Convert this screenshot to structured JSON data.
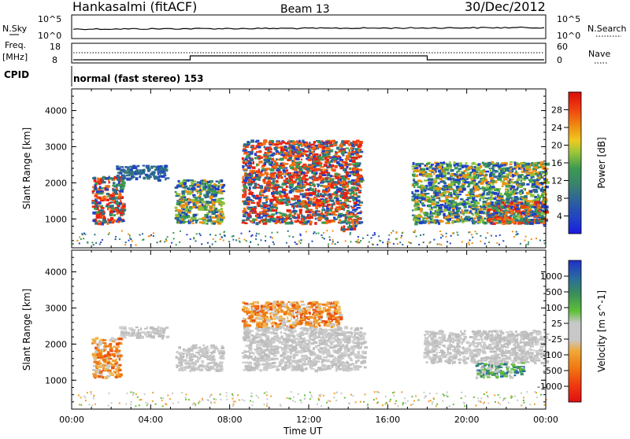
{
  "header": {
    "station": "Hankasalmi (fitACF)",
    "beam": "Beam 13",
    "date": "30/Dec/2012"
  },
  "top_panels": {
    "nsky_label": "N.Sky",
    "nsky_ticks": [
      "10^5",
      "10^0"
    ],
    "nsearch_label": "N.Search",
    "nsearch_ticks": [
      "10^5",
      "10^0"
    ],
    "freq_label": "Freq.",
    "freq_unit": "[MHz]",
    "freq_ticks": [
      "18",
      "8"
    ],
    "nave_label": "Nave",
    "nave_ticks": [
      "60",
      "0"
    ],
    "cpid_label": "CPID",
    "cpid_text": "normal (fast stereo) 153"
  },
  "chart_data": [
    {
      "type": "heatmap",
      "name": "power-panel",
      "ylabel": "Slant Range [km]",
      "ylim": [
        200,
        4600
      ],
      "yticks": [
        1000,
        2000,
        3000,
        4000
      ],
      "xlim": [
        0,
        24
      ],
      "colorbar": {
        "label": "Power [dB]",
        "ticks": [
          "4",
          "8",
          "12",
          "16",
          "20",
          "24",
          "28"
        ],
        "colors": [
          "#2030d8",
          "#2050b0",
          "#2b6e8a",
          "#3a8a66",
          "#2fa046",
          "#8cc43a",
          "#e8c020",
          "#f09010",
          "#f06010",
          "#e83010",
          "#d81010"
        ]
      },
      "echo_regions": [
        {
          "t": [
            1.0,
            2.6
          ],
          "r": [
            900,
            2200
          ],
          "level": "high"
        },
        {
          "t": [
            2.2,
            4.8
          ],
          "r": [
            2100,
            2500
          ],
          "level": "low"
        },
        {
          "t": [
            5.2,
            7.6
          ],
          "r": [
            900,
            2100
          ],
          "level": "mid"
        },
        {
          "t": [
            8.6,
            14.6
          ],
          "r": [
            900,
            3200
          ],
          "level": "high"
        },
        {
          "t": [
            13.6,
            14.4
          ],
          "r": [
            700,
            1000
          ],
          "level": "high"
        },
        {
          "t": [
            17.2,
            24.0
          ],
          "r": [
            900,
            2600
          ],
          "level": "mid"
        },
        {
          "t": [
            21.0,
            24.0
          ],
          "r": [
            900,
            1500
          ],
          "level": "high"
        }
      ]
    },
    {
      "type": "heatmap",
      "name": "velocity-panel",
      "ylabel": "Slant Range [km]",
      "ylim": [
        200,
        4600
      ],
      "yticks": [
        1000,
        2000,
        3000,
        4000
      ],
      "xlim": [
        0,
        24
      ],
      "xticks": [
        "00:00",
        "04:00",
        "08:00",
        "12:00",
        "16:00",
        "20:00",
        "00:00"
      ],
      "xlabel": "Time UT",
      "colorbar": {
        "label": "Velocity [m s^-1]",
        "ticks": [
          "1000",
          "500",
          "100",
          "25",
          "-25",
          "-100",
          "-500",
          "-1000"
        ],
        "colors": [
          "#2030c8",
          "#2a6aa0",
          "#2f8a58",
          "#58b830",
          "#a8d060",
          "#c8c8c8",
          "#f0a030",
          "#f07010",
          "#e83010",
          "#d81010"
        ]
      },
      "echo_regions": [
        {
          "t": [
            1.0,
            2.4
          ],
          "r": [
            1100,
            2200
          ],
          "level": "orange"
        },
        {
          "t": [
            2.4,
            4.8
          ],
          "r": [
            2200,
            2500
          ],
          "level": "grey"
        },
        {
          "t": [
            5.2,
            7.6
          ],
          "r": [
            1300,
            2000
          ],
          "level": "grey"
        },
        {
          "t": [
            8.6,
            14.8
          ],
          "r": [
            1300,
            2500
          ],
          "level": "grey"
        },
        {
          "t": [
            8.6,
            13.6
          ],
          "r": [
            2500,
            3200
          ],
          "level": "orange"
        },
        {
          "t": [
            17.8,
            24.0
          ],
          "r": [
            1500,
            2400
          ],
          "level": "grey"
        },
        {
          "t": [
            20.4,
            22.8
          ],
          "r": [
            1100,
            1500
          ],
          "level": "green"
        }
      ]
    }
  ]
}
